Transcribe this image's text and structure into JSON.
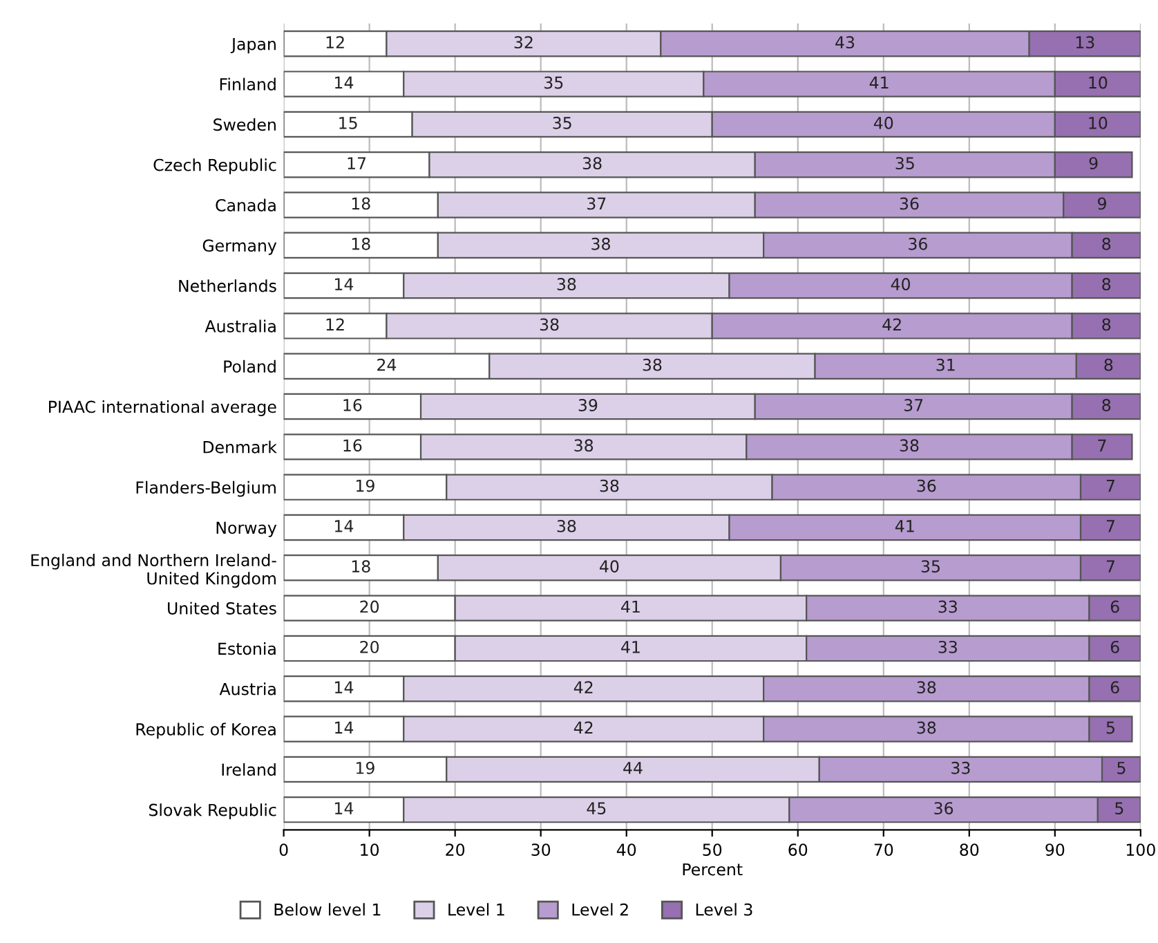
{
  "chart_data": {
    "type": "bar",
    "orientation": "horizontal",
    "stacked": true,
    "xlabel": "Percent",
    "categories": [
      "Japan",
      "Finland",
      "Sweden",
      "Czech Republic",
      "Canada",
      "Germany",
      "Netherlands",
      "Australia",
      "Poland",
      "PIAAC international average",
      "Denmark",
      "Flanders-Belgium",
      "Norway",
      "England and Northern Ireland-\nUnited Kingdom",
      "United States",
      "Estonia",
      "Austria",
      "Republic of Korea",
      "Ireland",
      "Slovak Republic"
    ],
    "series": [
      {
        "name": "Below level 1",
        "color": "#ffffff",
        "values": [
          12,
          14,
          15,
          17,
          18,
          18,
          14,
          12,
          24,
          16,
          16,
          19,
          14,
          18,
          20,
          20,
          14,
          14,
          19,
          14
        ]
      },
      {
        "name": "Level 1",
        "color": "#dcd0e8",
        "values": [
          32,
          35,
          35,
          38,
          37,
          38,
          38,
          38,
          38,
          39,
          38,
          38,
          38,
          40,
          41,
          41,
          42,
          42,
          43.5,
          45
        ],
        "value_labels": [
          "32",
          "35",
          "35",
          "38",
          "37",
          "38",
          "38",
          "38",
          "38",
          "39",
          "38",
          "38",
          "38",
          "40",
          "41",
          "41",
          "42",
          "42",
          "44",
          "45"
        ]
      },
      {
        "name": "Level 2",
        "color": "#b79ccf",
        "values": [
          43,
          41,
          40,
          35,
          36,
          36,
          40,
          42,
          30.5,
          37,
          38,
          36,
          41,
          35,
          33,
          33,
          38,
          38,
          33,
          36
        ],
        "value_labels": [
          "43",
          "41",
          "40",
          "35",
          "36",
          "36",
          "40",
          "42",
          "31",
          "37",
          "38",
          "36",
          "41",
          "35",
          "33",
          "33",
          "38",
          "38",
          "33",
          "36"
        ]
      },
      {
        "name": "Level 3",
        "color": "#9670b0",
        "values": [
          13,
          10,
          10,
          9,
          9,
          8,
          8,
          8,
          7.5,
          8,
          7,
          7,
          7,
          7,
          6,
          6,
          6,
          5,
          4.5,
          5
        ],
        "value_labels": [
          "13",
          "10",
          "10",
          "9",
          "9",
          "8",
          "8",
          "8",
          "8",
          "8",
          "7",
          "7",
          "7",
          "7",
          "6",
          "6",
          "6",
          "5",
          "5",
          "5"
        ]
      }
    ],
    "xlim": [
      0,
      100
    ],
    "xticks": [
      0,
      10,
      20,
      30,
      40,
      50,
      60,
      70,
      80,
      90,
      100
    ],
    "grid": "x",
    "legend": "bottom left",
    "data_labels": true
  }
}
